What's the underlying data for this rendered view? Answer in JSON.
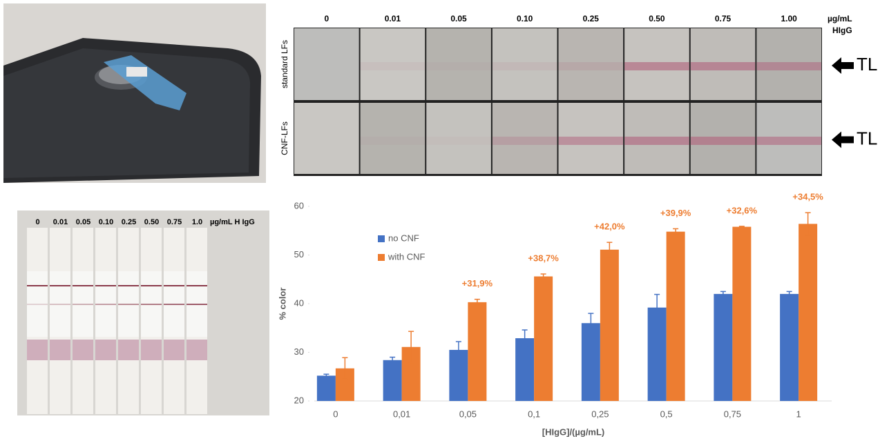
{
  "photo_grid": {
    "concentrations": [
      "0",
      "0.01",
      "0.05",
      "0.10",
      "0.25",
      "0.50",
      "0.75",
      "1.00"
    ],
    "unit": "µg/mL",
    "analyte": "HIgG",
    "rows": [
      {
        "label": "standard LFs",
        "marker": "TL"
      },
      {
        "label": "CNF-LFs",
        "marker": "TL"
      }
    ]
  },
  "strip_photo": {
    "concentrations": [
      "0",
      "0.01",
      "0.05",
      "0.10",
      "0.25",
      "0.50",
      "0.75",
      "1.0"
    ],
    "unit": "µg/mL H IgG"
  },
  "chart_data": {
    "type": "bar",
    "y_label": "% color",
    "x_label": "[HIgG]/(µg/mL)",
    "categories": [
      "0",
      "0,01",
      "0,05",
      "0,1",
      "0,25",
      "0,5",
      "0,75",
      "1"
    ],
    "series": [
      {
        "name": "no CNF",
        "color": "#4472c4",
        "values": [
          25.2,
          28.4,
          30.5,
          32.9,
          36.0,
          39.2,
          42.0,
          42.0
        ],
        "errors": [
          0.3,
          0.6,
          1.7,
          1.7,
          2.0,
          2.7,
          0.5,
          0.5
        ]
      },
      {
        "name": "with CNF",
        "color": "#ed7d31",
        "values": [
          26.7,
          31.1,
          40.3,
          45.6,
          51.1,
          54.8,
          55.8,
          56.4
        ],
        "errors": [
          2.2,
          3.2,
          0.6,
          0.5,
          1.5,
          0.6,
          0.1,
          2.3
        ]
      }
    ],
    "annotations": [
      null,
      null,
      "+31,9%",
      "+38,7%",
      "+42,0%",
      "+39,9%",
      "+32,6%",
      "+34,5%"
    ],
    "annotation_color": "#ed7d31",
    "ylim": [
      20,
      60
    ],
    "yticks": [
      20,
      30,
      40,
      50,
      60
    ],
    "grid": false,
    "legend": "upper left"
  }
}
